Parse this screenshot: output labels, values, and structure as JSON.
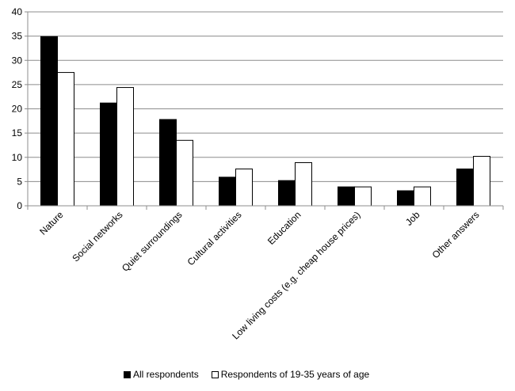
{
  "chart_data": {
    "type": "bar",
    "title": "",
    "xlabel": "",
    "ylabel": "",
    "ylim": [
      0,
      40
    ],
    "yticks": [
      0,
      5,
      10,
      15,
      20,
      25,
      30,
      35,
      40
    ],
    "grid": true,
    "legend_position": "bottom",
    "categories": [
      "Nature",
      "Social networks",
      "Quiet surroundings",
      "Cultural activities",
      "Education",
      "Low living costs (e.g. cheap house prices)",
      "Job",
      "Other answers"
    ],
    "series": [
      {
        "name": "All respondents",
        "color": "#000000",
        "values": [
          34.9,
          21.2,
          17.8,
          5.9,
          5.2,
          3.9,
          3.1,
          7.6
        ]
      },
      {
        "name": "Respondents of 19-35 years of age",
        "color": "#ffffff",
        "values": [
          27.5,
          24.4,
          13.5,
          7.6,
          8.9,
          3.9,
          3.9,
          10.2
        ]
      }
    ]
  }
}
